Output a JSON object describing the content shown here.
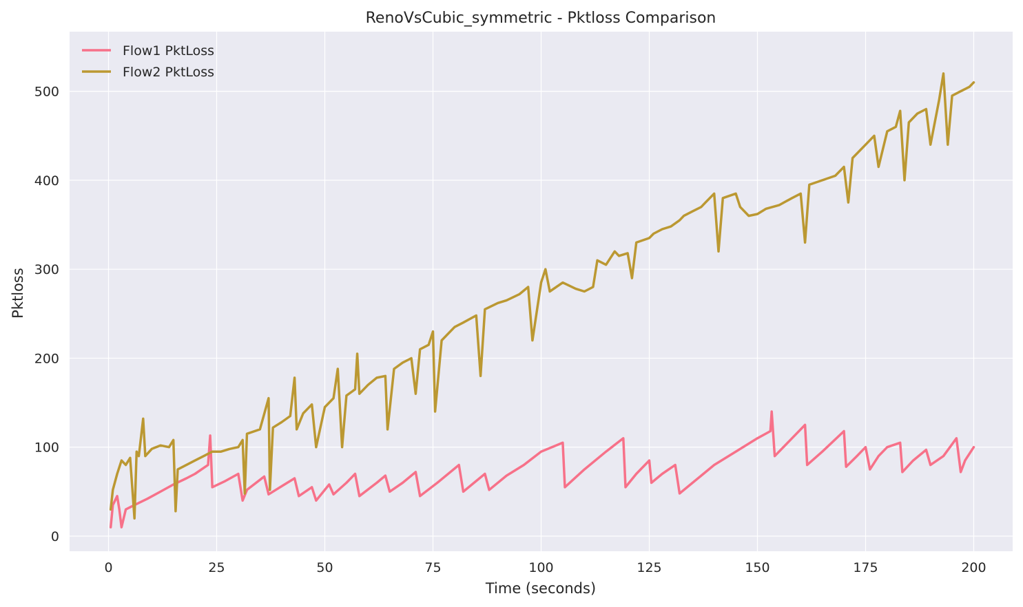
{
  "chart_data": {
    "type": "line",
    "title": "RenoVsCubic_symmetric - Pktloss Comparison",
    "xlabel": "Time (seconds)",
    "ylabel": "Pktloss",
    "xlim": [
      -9,
      209
    ],
    "ylim": [
      -17,
      567
    ],
    "x_ticks": [
      0,
      25,
      50,
      75,
      100,
      125,
      150,
      175,
      200
    ],
    "y_ticks": [
      0,
      100,
      200,
      300,
      400,
      500
    ],
    "grid": true,
    "legend_position": "top-left",
    "series": [
      {
        "name": "Flow1 PktLoss",
        "color": "#f77189",
        "points": [
          [
            0.5,
            10
          ],
          [
            1,
            35
          ],
          [
            2,
            45
          ],
          [
            2.5,
            30
          ],
          [
            3,
            10
          ],
          [
            4,
            30
          ],
          [
            6,
            35
          ],
          [
            9,
            42
          ],
          [
            12,
            50
          ],
          [
            15,
            58
          ],
          [
            18,
            65
          ],
          [
            20,
            70
          ],
          [
            23,
            80
          ],
          [
            23.5,
            113
          ],
          [
            24,
            55
          ],
          [
            27,
            62
          ],
          [
            30,
            70
          ],
          [
            31,
            40
          ],
          [
            32,
            52
          ],
          [
            36,
            67
          ],
          [
            37,
            47
          ],
          [
            40,
            56
          ],
          [
            43,
            65
          ],
          [
            44,
            45
          ],
          [
            47,
            55
          ],
          [
            48,
            40
          ],
          [
            51,
            58
          ],
          [
            52,
            47
          ],
          [
            55,
            60
          ],
          [
            57,
            70
          ],
          [
            58,
            45
          ],
          [
            62,
            60
          ],
          [
            64,
            68
          ],
          [
            65,
            50
          ],
          [
            68,
            60
          ],
          [
            71,
            72
          ],
          [
            72,
            45
          ],
          [
            76,
            60
          ],
          [
            81,
            80
          ],
          [
            82,
            50
          ],
          [
            85,
            62
          ],
          [
            87,
            70
          ],
          [
            88,
            52
          ],
          [
            92,
            68
          ],
          [
            96,
            80
          ],
          [
            100,
            95
          ],
          [
            105,
            105
          ],
          [
            105.5,
            55
          ],
          [
            110,
            75
          ],
          [
            115,
            95
          ],
          [
            119,
            110
          ],
          [
            119.5,
            55
          ],
          [
            122,
            70
          ],
          [
            125,
            85
          ],
          [
            125.5,
            60
          ],
          [
            128,
            70
          ],
          [
            131,
            80
          ],
          [
            132,
            48
          ],
          [
            135,
            60
          ],
          [
            140,
            80
          ],
          [
            145,
            95
          ],
          [
            150,
            110
          ],
          [
            153,
            118
          ],
          [
            153.3,
            140
          ],
          [
            154,
            90
          ],
          [
            158,
            110
          ],
          [
            161,
            125
          ],
          [
            161.5,
            80
          ],
          [
            165,
            95
          ],
          [
            170,
            118
          ],
          [
            170.5,
            78
          ],
          [
            173,
            90
          ],
          [
            175,
            100
          ],
          [
            176,
            75
          ],
          [
            178,
            90
          ],
          [
            180,
            100
          ],
          [
            183,
            105
          ],
          [
            183.5,
            72
          ],
          [
            186,
            85
          ],
          [
            189,
            97
          ],
          [
            190,
            80
          ],
          [
            193,
            90
          ],
          [
            196,
            110
          ],
          [
            197,
            72
          ],
          [
            198,
            85
          ],
          [
            200,
            100
          ]
        ]
      },
      {
        "name": "Flow2 PktLoss",
        "color": "#bb9832",
        "points": [
          [
            0.5,
            30
          ],
          [
            1,
            52
          ],
          [
            2,
            70
          ],
          [
            3,
            85
          ],
          [
            4,
            80
          ],
          [
            5,
            88
          ],
          [
            6,
            20
          ],
          [
            6.5,
            95
          ],
          [
            7,
            90
          ],
          [
            8,
            132
          ],
          [
            8.5,
            90
          ],
          [
            10,
            98
          ],
          [
            12,
            102
          ],
          [
            14,
            100
          ],
          [
            15,
            108
          ],
          [
            15.5,
            28
          ],
          [
            16,
            75
          ],
          [
            18,
            80
          ],
          [
            20,
            85
          ],
          [
            22,
            90
          ],
          [
            24,
            95
          ],
          [
            26,
            95
          ],
          [
            28,
            98
          ],
          [
            30,
            100
          ],
          [
            31,
            108
          ],
          [
            31.5,
            48
          ],
          [
            32,
            115
          ],
          [
            35,
            120
          ],
          [
            37,
            155
          ],
          [
            37.3,
            52
          ],
          [
            38,
            122
          ],
          [
            40,
            128
          ],
          [
            42,
            135
          ],
          [
            43,
            178
          ],
          [
            43.5,
            120
          ],
          [
            45,
            138
          ],
          [
            47,
            148
          ],
          [
            48,
            100
          ],
          [
            50,
            145
          ],
          [
            52,
            155
          ],
          [
            53,
            188
          ],
          [
            54,
            100
          ],
          [
            55,
            158
          ],
          [
            57,
            165
          ],
          [
            57.5,
            205
          ],
          [
            58,
            160
          ],
          [
            60,
            170
          ],
          [
            62,
            178
          ],
          [
            64,
            180
          ],
          [
            64.5,
            120
          ],
          [
            66,
            188
          ],
          [
            68,
            195
          ],
          [
            70,
            200
          ],
          [
            71,
            160
          ],
          [
            72,
            210
          ],
          [
            74,
            215
          ],
          [
            75,
            230
          ],
          [
            75.5,
            140
          ],
          [
            77,
            220
          ],
          [
            80,
            235
          ],
          [
            82,
            240
          ],
          [
            85,
            248
          ],
          [
            86,
            180
          ],
          [
            87,
            255
          ],
          [
            90,
            262
          ],
          [
            92,
            265
          ],
          [
            95,
            272
          ],
          [
            97,
            280
          ],
          [
            98,
            220
          ],
          [
            100,
            285
          ],
          [
            101,
            300
          ],
          [
            102,
            275
          ],
          [
            105,
            285
          ],
          [
            108,
            278
          ],
          [
            110,
            275
          ],
          [
            112,
            280
          ],
          [
            113,
            310
          ],
          [
            115,
            305
          ],
          [
            117,
            320
          ],
          [
            118,
            315
          ],
          [
            120,
            318
          ],
          [
            121,
            290
          ],
          [
            122,
            330
          ],
          [
            125,
            335
          ],
          [
            126,
            340
          ],
          [
            128,
            345
          ],
          [
            130,
            348
          ],
          [
            132,
            355
          ],
          [
            133,
            360
          ],
          [
            135,
            365
          ],
          [
            137,
            370
          ],
          [
            138,
            375
          ],
          [
            140,
            385
          ],
          [
            141,
            320
          ],
          [
            142,
            380
          ],
          [
            145,
            385
          ],
          [
            146,
            370
          ],
          [
            148,
            360
          ],
          [
            150,
            362
          ],
          [
            152,
            368
          ],
          [
            155,
            372
          ],
          [
            158,
            380
          ],
          [
            160,
            385
          ],
          [
            161,
            330
          ],
          [
            162,
            395
          ],
          [
            165,
            400
          ],
          [
            168,
            405
          ],
          [
            170,
            415
          ],
          [
            171,
            375
          ],
          [
            172,
            425
          ],
          [
            175,
            440
          ],
          [
            177,
            450
          ],
          [
            178,
            415
          ],
          [
            180,
            455
          ],
          [
            182,
            460
          ],
          [
            183,
            478
          ],
          [
            184,
            400
          ],
          [
            185,
            465
          ],
          [
            187,
            475
          ],
          [
            189,
            480
          ],
          [
            190,
            440
          ],
          [
            192,
            490
          ],
          [
            193,
            520
          ],
          [
            194,
            440
          ],
          [
            195,
            495
          ],
          [
            197,
            500
          ],
          [
            199,
            505
          ],
          [
            200,
            510
          ]
        ]
      }
    ]
  }
}
